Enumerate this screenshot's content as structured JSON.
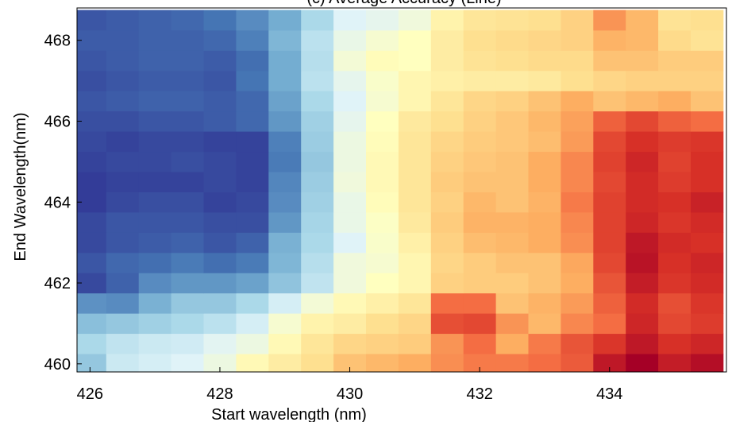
{
  "chart_data": {
    "type": "heatmap",
    "title": "(c) Average Accuracy (Line)",
    "xlabel": "Start wavelength (nm)",
    "ylabel": "End Wavelength(nm)",
    "xlim": [
      425.8,
      435.8
    ],
    "ylim": [
      459.8,
      468.8
    ],
    "x_ticks": [
      426,
      428,
      430,
      432,
      434
    ],
    "y_ticks": [
      460,
      462,
      464,
      466,
      468
    ],
    "x_tick_labels": [
      "426",
      "428",
      "430",
      "432",
      "434"
    ],
    "y_tick_labels": [
      "460",
      "462",
      "464",
      "466",
      "468"
    ],
    "x": [
      426,
      426.5,
      427,
      427.5,
      428,
      428.5,
      429,
      429.5,
      430,
      430.5,
      431,
      431.5,
      432,
      432.5,
      433,
      433.5,
      434,
      434.5,
      435,
      435.5
    ],
    "y": [
      460,
      460.5,
      461,
      461.5,
      462,
      462.5,
      463,
      463.5,
      464,
      464.5,
      465,
      465.5,
      466,
      466.5,
      467,
      467.5,
      468,
      468.5
    ],
    "z": [
      [
        0.26,
        0.36,
        0.38,
        0.4,
        0.44,
        0.52,
        0.56,
        0.6,
        0.66,
        0.68,
        0.7,
        0.75,
        0.78,
        0.78,
        0.8,
        0.83,
        0.95,
        1.0,
        0.94,
        0.97
      ],
      [
        0.3,
        0.34,
        0.36,
        0.37,
        0.41,
        0.44,
        0.52,
        0.58,
        0.62,
        0.63,
        0.64,
        0.74,
        0.8,
        0.7,
        0.78,
        0.84,
        0.89,
        0.95,
        0.9,
        0.92
      ],
      [
        0.24,
        0.26,
        0.28,
        0.3,
        0.33,
        0.38,
        0.47,
        0.54,
        0.56,
        0.6,
        0.62,
        0.85,
        0.86,
        0.74,
        0.68,
        0.76,
        0.8,
        0.92,
        0.86,
        0.88
      ],
      [
        0.15,
        0.14,
        0.21,
        0.26,
        0.26,
        0.3,
        0.38,
        0.46,
        0.52,
        0.55,
        0.58,
        0.8,
        0.8,
        0.66,
        0.69,
        0.73,
        0.82,
        0.91,
        0.85,
        0.89
      ],
      [
        0.03,
        0.07,
        0.14,
        0.16,
        0.16,
        0.18,
        0.25,
        0.34,
        0.45,
        0.5,
        0.53,
        0.63,
        0.64,
        0.64,
        0.66,
        0.7,
        0.84,
        0.94,
        0.89,
        0.91
      ],
      [
        0.05,
        0.08,
        0.09,
        0.11,
        0.09,
        0.11,
        0.22,
        0.32,
        0.45,
        0.47,
        0.53,
        0.62,
        0.64,
        0.66,
        0.66,
        0.71,
        0.86,
        0.96,
        0.9,
        0.92
      ],
      [
        0.03,
        0.05,
        0.06,
        0.07,
        0.05,
        0.07,
        0.21,
        0.3,
        0.4,
        0.48,
        0.55,
        0.63,
        0.67,
        0.68,
        0.7,
        0.75,
        0.87,
        0.95,
        0.91,
        0.9
      ],
      [
        0.03,
        0.05,
        0.05,
        0.05,
        0.04,
        0.04,
        0.16,
        0.29,
        0.43,
        0.49,
        0.57,
        0.64,
        0.69,
        0.69,
        0.7,
        0.76,
        0.87,
        0.92,
        0.89,
        0.91
      ],
      [
        0.01,
        0.03,
        0.04,
        0.04,
        0.02,
        0.03,
        0.14,
        0.28,
        0.43,
        0.51,
        0.58,
        0.63,
        0.68,
        0.66,
        0.69,
        0.78,
        0.87,
        0.91,
        0.9,
        0.93
      ],
      [
        0.01,
        0.02,
        0.02,
        0.02,
        0.03,
        0.02,
        0.13,
        0.27,
        0.45,
        0.52,
        0.58,
        0.64,
        0.66,
        0.66,
        0.7,
        0.76,
        0.86,
        0.91,
        0.88,
        0.9
      ],
      [
        0.02,
        0.03,
        0.03,
        0.04,
        0.03,
        0.02,
        0.11,
        0.26,
        0.44,
        0.52,
        0.58,
        0.63,
        0.65,
        0.66,
        0.7,
        0.76,
        0.87,
        0.92,
        0.87,
        0.9
      ],
      [
        0.03,
        0.02,
        0.03,
        0.03,
        0.02,
        0.02,
        0.12,
        0.27,
        0.44,
        0.51,
        0.58,
        0.62,
        0.64,
        0.65,
        0.67,
        0.73,
        0.86,
        0.9,
        0.88,
        0.89
      ],
      [
        0.04,
        0.04,
        0.05,
        0.05,
        0.06,
        0.08,
        0.16,
        0.28,
        0.42,
        0.5,
        0.57,
        0.6,
        0.63,
        0.65,
        0.68,
        0.72,
        0.82,
        0.86,
        0.82,
        0.8
      ],
      [
        0.05,
        0.06,
        0.07,
        0.07,
        0.06,
        0.08,
        0.18,
        0.3,
        0.4,
        0.47,
        0.53,
        0.58,
        0.62,
        0.63,
        0.66,
        0.7,
        0.66,
        0.68,
        0.7,
        0.66
      ],
      [
        0.04,
        0.05,
        0.06,
        0.06,
        0.05,
        0.1,
        0.2,
        0.33,
        0.42,
        0.48,
        0.53,
        0.55,
        0.56,
        0.56,
        0.57,
        0.6,
        0.62,
        0.63,
        0.63,
        0.63
      ],
      [
        0.05,
        0.06,
        0.07,
        0.07,
        0.06,
        0.09,
        0.2,
        0.32,
        0.46,
        0.51,
        0.5,
        0.56,
        0.59,
        0.6,
        0.61,
        0.61,
        0.66,
        0.66,
        0.64,
        0.64
      ],
      [
        0.06,
        0.06,
        0.07,
        0.07,
        0.08,
        0.12,
        0.22,
        0.33,
        0.43,
        0.47,
        0.5,
        0.56,
        0.6,
        0.61,
        0.62,
        0.63,
        0.69,
        0.68,
        0.61,
        0.59
      ],
      [
        0.05,
        0.06,
        0.07,
        0.08,
        0.1,
        0.14,
        0.2,
        0.3,
        0.4,
        0.42,
        0.45,
        0.54,
        0.58,
        0.59,
        0.6,
        0.63,
        0.74,
        0.68,
        0.59,
        0.6
      ]
    ],
    "colormap": [
      "#313695",
      "#4575b4",
      "#74add1",
      "#abd9e9",
      "#e0f3f8",
      "#ffffbf",
      "#fee090",
      "#fdae61",
      "#f46d43",
      "#d73027",
      "#a50026"
    ],
    "grid": false
  }
}
